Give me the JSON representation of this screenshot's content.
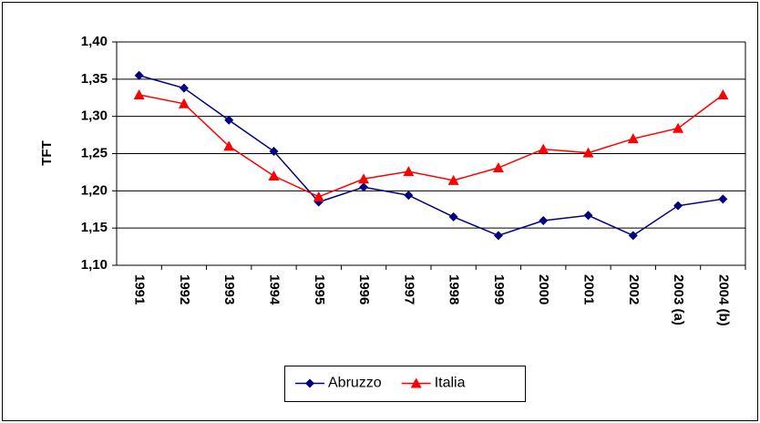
{
  "chart_data": {
    "type": "line",
    "y_label": "TFT",
    "categories": [
      "1991",
      "1992",
      "1993",
      "1994",
      "1995",
      "1996",
      "1997",
      "1998",
      "1999",
      "2000",
      "2001",
      "2002",
      "2003 (a)",
      "2004 (b)"
    ],
    "series": [
      {
        "name": "Abruzzo",
        "color": "#000080",
        "marker": "diamond",
        "values": [
          1.355,
          1.338,
          1.295,
          1.253,
          1.185,
          1.205,
          1.194,
          1.165,
          1.14,
          1.16,
          1.167,
          1.14,
          1.18,
          1.189
        ]
      },
      {
        "name": "Italia",
        "color": "#ff0000",
        "marker": "triangle",
        "values": [
          1.329,
          1.317,
          1.26,
          1.22,
          1.192,
          1.216,
          1.226,
          1.214,
          1.231,
          1.256,
          1.251,
          1.27,
          1.284,
          1.329
        ]
      }
    ],
    "ylim": [
      1.1,
      1.4
    ],
    "yticks": [
      {
        "value": 1.1,
        "label": "1,10"
      },
      {
        "value": 1.15,
        "label": "1,15"
      },
      {
        "value": 1.2,
        "label": "1,20"
      },
      {
        "value": 1.25,
        "label": "1,25"
      },
      {
        "value": 1.3,
        "label": "1,30"
      },
      {
        "value": 1.35,
        "label": "1,35"
      },
      {
        "value": 1.4,
        "label": "1,40"
      }
    ],
    "grid": true,
    "legend": "bottom"
  }
}
